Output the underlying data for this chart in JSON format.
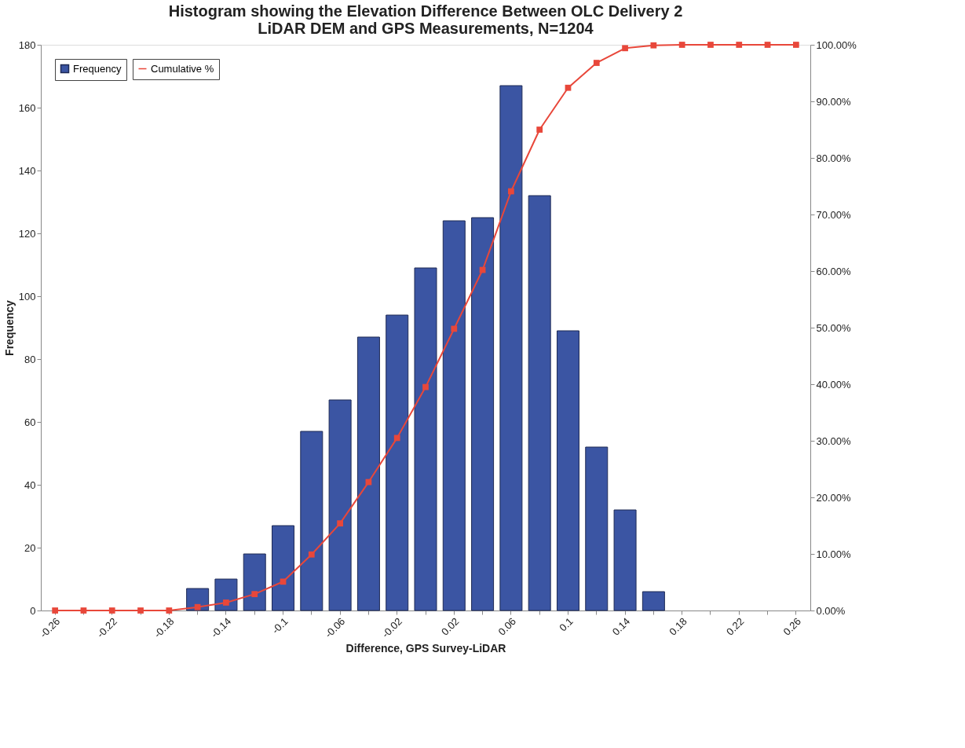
{
  "chart_data": {
    "type": "bar",
    "title": [
      "Histogram showing the Elevation Difference Between OLC Delivery 2",
      "LiDAR DEM and GPS Measurements, N=1204"
    ],
    "xlabel": "Difference, GPS Survey-LiDAR",
    "ylabel": "Frequency",
    "categories": [
      "-0.26",
      null,
      "-0.22",
      null,
      "-0.18",
      null,
      "-0.14",
      null,
      "-0.1",
      null,
      "-0.06",
      null,
      "-0.02",
      null,
      "0.02",
      null,
      "0.06",
      null,
      "0.1",
      null,
      "0.14",
      null,
      "0.18",
      null,
      "0.22",
      null,
      "0.26"
    ],
    "series": [
      {
        "name": "Frequency",
        "color": "#3b55a3",
        "values": [
          null,
          null,
          null,
          null,
          null,
          7,
          10,
          18,
          27,
          57,
          67,
          87,
          94,
          109,
          124,
          125,
          167,
          132,
          89,
          52,
          32,
          6,
          null,
          null,
          null,
          null,
          null
        ]
      },
      {
        "name": "Cumulative %",
        "type": "line",
        "axis": "y2",
        "color": "#e8473a",
        "values": [
          0,
          0,
          0,
          0,
          0,
          0.6,
          1.4,
          2.9,
          5.1,
          9.9,
          15.4,
          22.7,
          30.5,
          39.5,
          49.8,
          60.2,
          74.1,
          85.0,
          92.4,
          96.8,
          99.4,
          99.9,
          100,
          100,
          100,
          100,
          100
        ]
      }
    ],
    "ylim": [
      0,
      180
    ],
    "yticks": [
      0,
      20,
      40,
      60,
      80,
      100,
      120,
      140,
      160,
      180
    ],
    "y2lim": [
      0,
      100
    ],
    "y2ticks": [
      {
        "value": 0,
        "label": "0.00%"
      },
      {
        "value": 10,
        "label": "10.00%"
      },
      {
        "value": 20,
        "label": "20.00%"
      },
      {
        "value": 30,
        "label": "30.00%"
      },
      {
        "value": 40,
        "label": "40.00%"
      },
      {
        "value": 50,
        "label": "50.00%"
      },
      {
        "value": 60,
        "label": "60.00%"
      },
      {
        "value": 70,
        "label": "70.00%"
      },
      {
        "value": 80,
        "label": "80.00%"
      },
      {
        "value": 90,
        "label": "90.00%"
      },
      {
        "value": 100,
        "label": "100.00%"
      }
    ],
    "marker": "square",
    "line_style": "solid",
    "grid": false,
    "legend": "top left"
  }
}
